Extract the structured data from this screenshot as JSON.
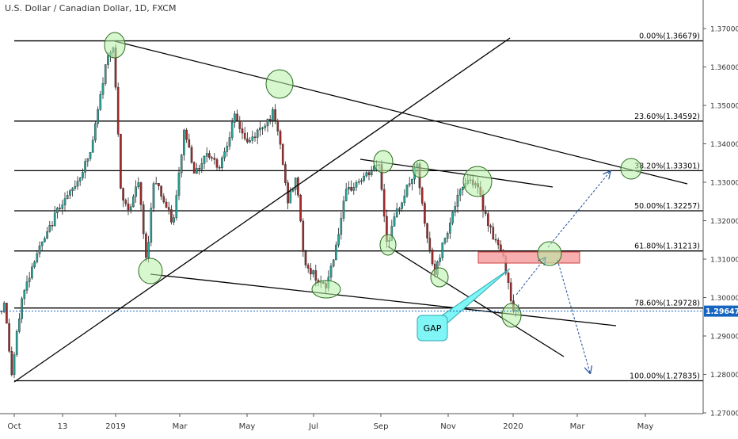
{
  "chart_data": {
    "type": "candlestick",
    "title": "U.S. Dollar / Canadian Dollar, 1D, FXCM",
    "x_ticks": [
      "Oct",
      "13",
      "2019",
      "Mar",
      "May",
      "Jul",
      "Sep",
      "Nov",
      "2020",
      "Mar",
      "May"
    ],
    "y_ticks": [
      "1.37000",
      "1.36000",
      "1.35000",
      "1.34000",
      "1.33000",
      "1.32000",
      "1.31000",
      "1.30000",
      "1.29000",
      "1.28000",
      "1.27000"
    ],
    "ylim": [
      1.2695,
      1.3745
    ],
    "current_price": {
      "value": 1.29647,
      "label": "1.29647"
    },
    "fib_levels": [
      {
        "label": "0.00%(1.36679)",
        "value": 1.36679
      },
      {
        "label": "23.60%(1.34592)",
        "value": 1.34592
      },
      {
        "label": "38.20%(1.33301)",
        "value": 1.33301
      },
      {
        "label": "50.00%(1.32257)",
        "value": 1.32257
      },
      {
        "label": "61.80%(1.31213)",
        "value": 1.31213
      },
      {
        "label": "78.60%(1.29728)",
        "value": 1.29728
      },
      {
        "label": "100.00%(1.27835)",
        "value": 1.27835
      }
    ],
    "annotations": [
      {
        "text": "GAP"
      }
    ],
    "colors": {
      "up": "#26a69a",
      "down": "#a52a2a",
      "fib": "#000000",
      "arrow": "#1f4e9c",
      "zone": "#f4a0a0",
      "circle": "#b6f2a8",
      "gap_box": "#7ff5f5",
      "price_tag": "#1565c0"
    }
  }
}
